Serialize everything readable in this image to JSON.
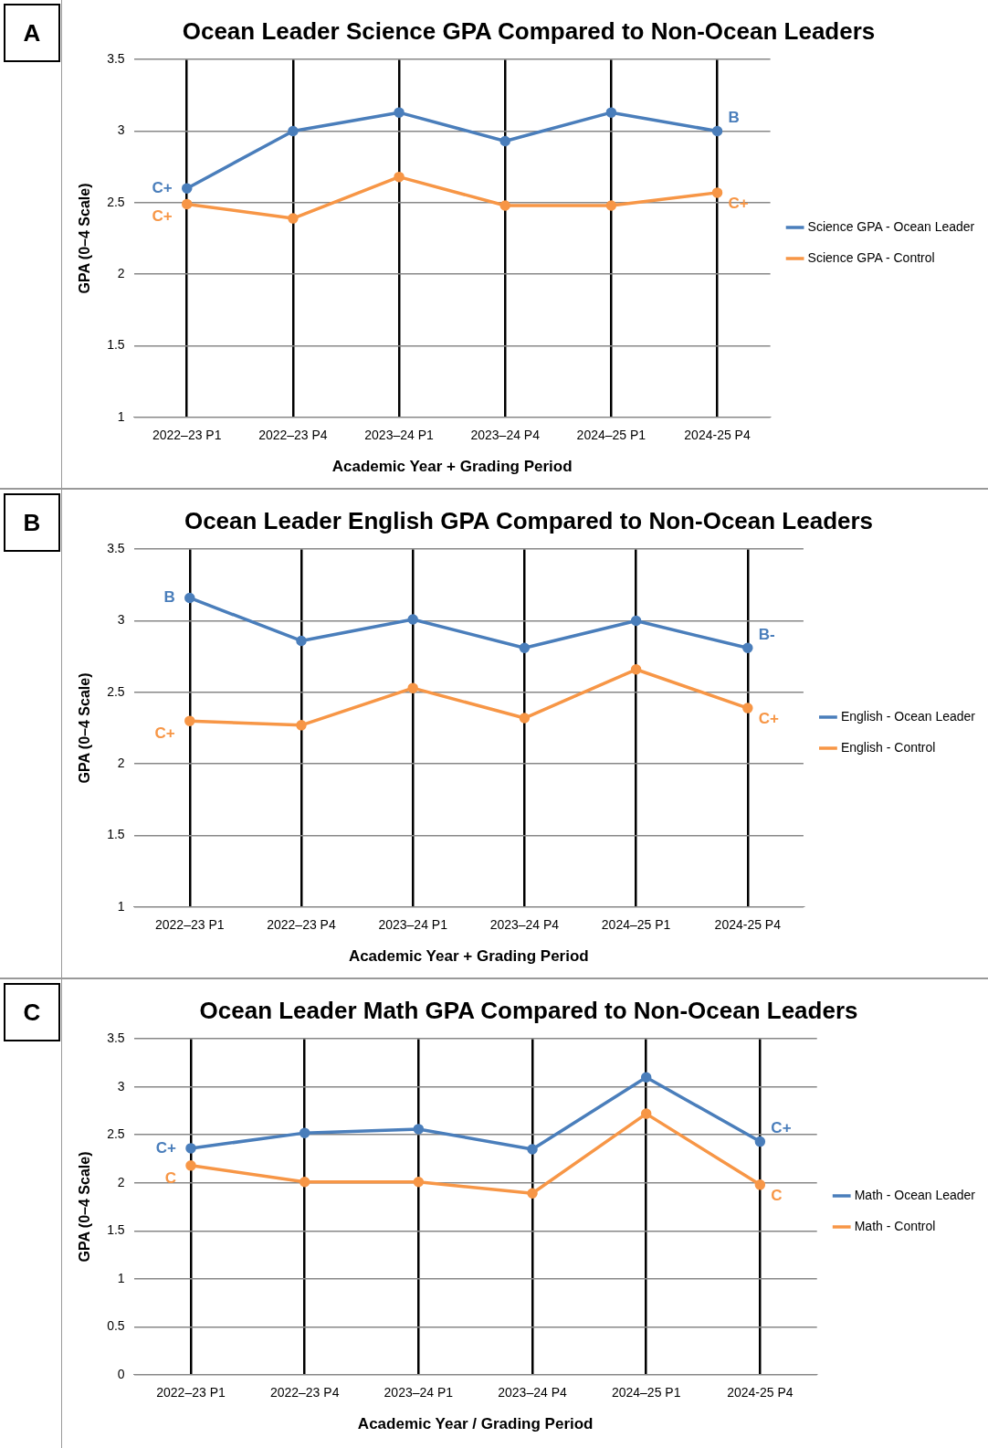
{
  "chart_data": [
    {
      "type": "line",
      "title": "Ocean Leader Science GPA Compared to Non-Ocean Leaders",
      "xlabel": "Academic Year + Grading Period",
      "ylabel": "GPA (0–4 Scale)",
      "categories": [
        "2022–23 P1",
        "2022–23 P4",
        "2023–24 P1",
        "2023–24 P4",
        "2024–25 P1",
        "2024-25 P4"
      ],
      "series": [
        {
          "name": "Science GPA - Ocean Leader",
          "color": "#4a7ebb",
          "values": [
            2.6,
            3.0,
            3.13,
            2.93,
            3.13,
            3.0
          ]
        },
        {
          "name": "Science GPA - Control",
          "color": "#f79646",
          "values": [
            2.49,
            2.39,
            2.68,
            2.48,
            2.48,
            2.57
          ]
        }
      ],
      "ylim": [
        1,
        3.5
      ],
      "yticks": [
        1,
        1.5,
        2,
        2.5,
        3,
        3.5
      ],
      "grid": true,
      "legend": "right",
      "marker": "circle",
      "line_style": "solid",
      "annotations": [
        "A",
        {
          "text": "C+",
          "x": "2022–23 P1",
          "y": 2.6
        },
        {
          "text": "C+",
          "x": "2022–23 P1",
          "y": 2.49
        },
        {
          "text": "B",
          "x": "2024-25 P4",
          "y": 3.0
        },
        {
          "text": "C+",
          "x": "2024-25 P4",
          "y": 2.57
        }
      ]
    },
    {
      "type": "line",
      "title": "Ocean Leader English GPA Compared to Non-Ocean Leaders",
      "xlabel": "Academic Year + Grading Period",
      "ylabel": "GPA (0–4 Scale)",
      "categories": [
        "2022–23 P1",
        "2022–23 P4",
        "2023–24 P1",
        "2023–24 P4",
        "2024–25 P1",
        "2024-25 P4"
      ],
      "series": [
        {
          "name": "English - Ocean Leader",
          "color": "#4a7ebb",
          "values": [
            3.16,
            2.86,
            3.01,
            2.81,
            3.0,
            2.81
          ]
        },
        {
          "name": "English - Control",
          "color": "#f79646",
          "values": [
            2.3,
            2.27,
            2.53,
            2.32,
            2.66,
            2.39
          ]
        }
      ],
      "ylim": [
        1,
        3.5
      ],
      "yticks": [
        1,
        1.5,
        2,
        2.5,
        3,
        3.5
      ],
      "grid": true,
      "legend": "right",
      "marker": "circle",
      "line_style": "solid",
      "annotations": [
        "B",
        {
          "text": "B",
          "x": "2022–23 P1",
          "y": 3.16
        },
        {
          "text": "C+",
          "x": "2022–23 P1",
          "y": 2.3
        },
        {
          "text": "B-",
          "x": "2024-25 P4",
          "y": 2.81
        },
        {
          "text": "C+",
          "x": "2024-25 P4",
          "y": 2.39
        }
      ]
    },
    {
      "type": "line",
      "title": "Ocean Leader Math GPA Compared to Non-Ocean Leaders",
      "xlabel": "Academic Year / Grading Period",
      "ylabel": "GPA (0–4 Scale)",
      "categories": [
        "2022–23 P1",
        "2022–23 P4",
        "2023–24 P1",
        "2023–24 P4",
        "2024–25 P1",
        "2024-25 P4"
      ],
      "series": [
        {
          "name": "Math - Ocean Leader",
          "color": "#4a7ebb",
          "values": [
            2.36,
            2.52,
            2.56,
            2.35,
            3.1,
            2.43
          ]
        },
        {
          "name": "Math - Control",
          "color": "#f79646",
          "values": [
            2.18,
            2.01,
            2.01,
            1.89,
            2.72,
            1.98
          ]
        }
      ],
      "ylim": [
        0,
        3.5
      ],
      "yticks": [
        0,
        0.5,
        1,
        1.5,
        2,
        2.5,
        3,
        3.5
      ],
      "grid": true,
      "legend": "right",
      "marker": "circle",
      "line_style": "solid",
      "annotations": [
        "C",
        {
          "text": "C+",
          "x": "2022–23 P1",
          "y": 2.36
        },
        {
          "text": "C",
          "x": "2022–23 P1",
          "y": 2.18
        },
        {
          "text": "C+",
          "x": "2024-25 P4",
          "y": 2.43
        },
        {
          "text": "C",
          "x": "2024-25 P4",
          "y": 1.98
        }
      ]
    }
  ]
}
